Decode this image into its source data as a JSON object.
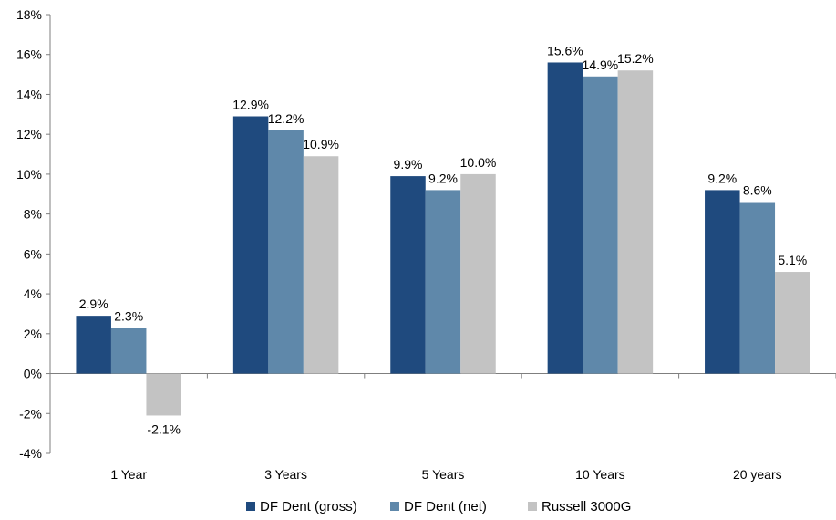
{
  "chart_data": {
    "type": "bar",
    "categories": [
      "1 Year",
      "3 Years",
      "5 Years",
      "10 Years",
      "20 years"
    ],
    "series": [
      {
        "name": "DF Dent (gross)",
        "color": "#1F4A7E",
        "values": [
          2.9,
          12.9,
          9.9,
          15.6,
          9.2
        ],
        "labels": [
          "2.9%",
          "12.9%",
          "9.9%",
          "15.6%",
          "9.2%"
        ]
      },
      {
        "name": "DF Dent (net)",
        "color": "#5F88AA",
        "values": [
          2.3,
          12.2,
          9.2,
          14.9,
          8.6
        ],
        "labels": [
          "2.3%",
          "12.2%",
          "9.2%",
          "14.9%",
          "8.6%"
        ]
      },
      {
        "name": "Russell 3000G",
        "color": "#C3C3C3",
        "values": [
          -2.1,
          10.9,
          10.0,
          15.2,
          5.1
        ],
        "labels": [
          "-2.1%",
          "10.9%",
          "10.0%",
          "15.2%",
          "5.1%"
        ]
      }
    ],
    "ylim": [
      -4,
      18
    ],
    "yticks": [
      "-4%",
      "-2%",
      "0%",
      "2%",
      "4%",
      "6%",
      "8%",
      "10%",
      "12%",
      "14%",
      "16%",
      "18%"
    ],
    "ytick_values": [
      -4,
      -2,
      0,
      2,
      4,
      6,
      8,
      10,
      12,
      14,
      16,
      18
    ],
    "title": "",
    "xlabel": "",
    "ylabel": "",
    "legend": "bottom"
  }
}
